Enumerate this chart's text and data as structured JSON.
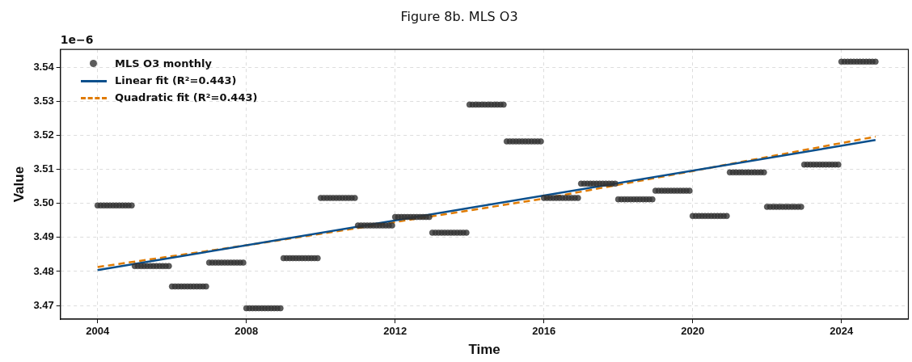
{
  "chart_data": {
    "type": "scatter",
    "title": "Figure 8b. MLS O3",
    "xlabel": "Time",
    "ylabel": "Value",
    "annotations": [
      "1e−6"
    ],
    "xlim": [
      2003,
      2025.8
    ],
    "xticks": [
      2004,
      2008,
      2012,
      2016,
      2020,
      2024
    ],
    "ylim": [
      3.466,
      3.5452
    ],
    "yticks": [
      3.47,
      3.48,
      3.49,
      {
        "value": 3.5,
        "label": "3.50"
      },
      3.51,
      3.52,
      3.53,
      3.54
    ],
    "grid": true,
    "legend": "top left",
    "series": [
      {
        "name": "MLS O3 monthly",
        "color": "#333333",
        "marker": "circle",
        "x": [
          2004,
          2004.083,
          2004.167,
          2004.25,
          2004.333,
          2004.417,
          2004.5,
          2004.583,
          2004.667,
          2004.75,
          2004.833,
          2004.917,
          2005,
          2005.083,
          2005.167,
          2005.25,
          2005.333,
          2005.417,
          2005.5,
          2005.583,
          2005.667,
          2005.75,
          2005.833,
          2005.917,
          2006,
          2006.083,
          2006.167,
          2006.25,
          2006.333,
          2006.417,
          2006.5,
          2006.583,
          2006.667,
          2006.75,
          2006.833,
          2006.917,
          2007,
          2007.083,
          2007.167,
          2007.25,
          2007.333,
          2007.417,
          2007.5,
          2007.583,
          2007.667,
          2007.75,
          2007.833,
          2007.917,
          2008,
          2008.083,
          2008.167,
          2008.25,
          2008.333,
          2008.417,
          2008.5,
          2008.583,
          2008.667,
          2008.75,
          2008.833,
          2008.917,
          2009,
          2009.083,
          2009.167,
          2009.25,
          2009.333,
          2009.417,
          2009.5,
          2009.583,
          2009.667,
          2009.75,
          2009.833,
          2009.917,
          2010,
          2010.083,
          2010.167,
          2010.25,
          2010.333,
          2010.417,
          2010.5,
          2010.583,
          2010.667,
          2010.75,
          2010.833,
          2010.917,
          2011,
          2011.083,
          2011.167,
          2011.25,
          2011.333,
          2011.417,
          2011.5,
          2011.583,
          2011.667,
          2011.75,
          2011.833,
          2011.917,
          2012,
          2012.083,
          2012.167,
          2012.25,
          2012.333,
          2012.417,
          2012.5,
          2012.583,
          2012.667,
          2012.75,
          2012.833,
          2012.917,
          2013,
          2013.083,
          2013.167,
          2013.25,
          2013.333,
          2013.417,
          2013.5,
          2013.583,
          2013.667,
          2013.75,
          2013.833,
          2013.917,
          2014,
          2014.083,
          2014.167,
          2014.25,
          2014.333,
          2014.417,
          2014.5,
          2014.583,
          2014.667,
          2014.75,
          2014.833,
          2014.917,
          2015,
          2015.083,
          2015.167,
          2015.25,
          2015.333,
          2015.417,
          2015.5,
          2015.583,
          2015.667,
          2015.75,
          2015.833,
          2015.917,
          2016,
          2016.083,
          2016.167,
          2016.25,
          2016.333,
          2016.417,
          2016.5,
          2016.583,
          2016.667,
          2016.75,
          2016.833,
          2016.917,
          2017,
          2017.083,
          2017.167,
          2017.25,
          2017.333,
          2017.417,
          2017.5,
          2017.583,
          2017.667,
          2017.75,
          2017.833,
          2017.917,
          2018,
          2018.083,
          2018.167,
          2018.25,
          2018.333,
          2018.417,
          2018.5,
          2018.583,
          2018.667,
          2018.75,
          2018.833,
          2018.917,
          2019,
          2019.083,
          2019.167,
          2019.25,
          2019.333,
          2019.417,
          2019.5,
          2019.583,
          2019.667,
          2019.75,
          2019.833,
          2019.917,
          2020,
          2020.083,
          2020.167,
          2020.25,
          2020.333,
          2020.417,
          2020.5,
          2020.583,
          2020.667,
          2020.75,
          2020.833,
          2020.917,
          2021,
          2021.083,
          2021.167,
          2021.25,
          2021.333,
          2021.417,
          2021.5,
          2021.583,
          2021.667,
          2021.75,
          2021.833,
          2021.917,
          2022,
          2022.083,
          2022.167,
          2022.25,
          2022.333,
          2022.417,
          2022.5,
          2022.583,
          2022.667,
          2022.75,
          2022.833,
          2022.917,
          2023,
          2023.083,
          2023.167,
          2023.25,
          2023.333,
          2023.417,
          2023.5,
          2023.583,
          2023.667,
          2023.75,
          2023.833,
          2023.917,
          2024,
          2024.083,
          2024.167,
          2024.25,
          2024.333,
          2024.417,
          2024.5,
          2024.583,
          2024.667,
          2024.75,
          2024.833,
          2024.917
        ],
        "values": [
          3.4994,
          3.4994,
          3.4994,
          3.4994,
          3.4994,
          3.4994,
          3.4994,
          3.4994,
          3.4994,
          3.4994,
          3.4994,
          3.4994,
          3.4816,
          3.4816,
          3.4816,
          3.4816,
          3.4816,
          3.4816,
          3.4816,
          3.4816,
          3.4816,
          3.4816,
          3.4816,
          3.4816,
          3.4756,
          3.4756,
          3.4756,
          3.4756,
          3.4756,
          3.4756,
          3.4756,
          3.4756,
          3.4756,
          3.4756,
          3.4756,
          3.4756,
          3.4826,
          3.4826,
          3.4826,
          3.4826,
          3.4826,
          3.4826,
          3.4826,
          3.4826,
          3.4826,
          3.4826,
          3.4826,
          3.4826,
          3.4692,
          3.4692,
          3.4692,
          3.4692,
          3.4692,
          3.4692,
          3.4692,
          3.4692,
          3.4692,
          3.4692,
          3.4692,
          3.4692,
          3.4839,
          3.4839,
          3.4839,
          3.4839,
          3.4839,
          3.4839,
          3.4839,
          3.4839,
          3.4839,
          3.4839,
          3.4839,
          3.4839,
          3.5016,
          3.5016,
          3.5016,
          3.5016,
          3.5016,
          3.5016,
          3.5016,
          3.5016,
          3.5016,
          3.5016,
          3.5016,
          3.5016,
          3.4935,
          3.4935,
          3.4935,
          3.4935,
          3.4935,
          3.4935,
          3.4935,
          3.4935,
          3.4935,
          3.4935,
          3.4935,
          3.4935,
          3.496,
          3.496,
          3.496,
          3.496,
          3.496,
          3.496,
          3.496,
          3.496,
          3.496,
          3.496,
          3.496,
          3.496,
          3.4914,
          3.4914,
          3.4914,
          3.4914,
          3.4914,
          3.4914,
          3.4914,
          3.4914,
          3.4914,
          3.4914,
          3.4914,
          3.4914,
          3.529,
          3.529,
          3.529,
          3.529,
          3.529,
          3.529,
          3.529,
          3.529,
          3.529,
          3.529,
          3.529,
          3.529,
          3.5182,
          3.5182,
          3.5182,
          3.5182,
          3.5182,
          3.5182,
          3.5182,
          3.5182,
          3.5182,
          3.5182,
          3.5182,
          3.5182,
          3.5016,
          3.5016,
          3.5016,
          3.5016,
          3.5016,
          3.5016,
          3.5016,
          3.5016,
          3.5016,
          3.5016,
          3.5016,
          3.5016,
          3.5058,
          3.5058,
          3.5058,
          3.5058,
          3.5058,
          3.5058,
          3.5058,
          3.5058,
          3.5058,
          3.5058,
          3.5058,
          3.5058,
          3.5012,
          3.5012,
          3.5012,
          3.5012,
          3.5012,
          3.5012,
          3.5012,
          3.5012,
          3.5012,
          3.5012,
          3.5012,
          3.5012,
          3.5037,
          3.5037,
          3.5037,
          3.5037,
          3.5037,
          3.5037,
          3.5037,
          3.5037,
          3.5037,
          3.5037,
          3.5037,
          3.5037,
          3.4963,
          3.4963,
          3.4963,
          3.4963,
          3.4963,
          3.4963,
          3.4963,
          3.4963,
          3.4963,
          3.4963,
          3.4963,
          3.4963,
          3.5091,
          3.5091,
          3.5091,
          3.5091,
          3.5091,
          3.5091,
          3.5091,
          3.5091,
          3.5091,
          3.5091,
          3.5091,
          3.5091,
          3.499,
          3.499,
          3.499,
          3.499,
          3.499,
          3.499,
          3.499,
          3.499,
          3.499,
          3.499,
          3.499,
          3.499,
          3.5114,
          3.5114,
          3.5114,
          3.5114,
          3.5114,
          3.5114,
          3.5114,
          3.5114,
          3.5114,
          3.5114,
          3.5114,
          3.5114,
          3.5416,
          3.5416,
          3.5416,
          3.5416,
          3.5416,
          3.5416,
          3.5416,
          3.5416,
          3.5416,
          3.5416,
          3.5416,
          3.5416
        ]
      },
      {
        "name": "Linear fit (R²=0.443)",
        "type": "line",
        "color": "#0a4f8c",
        "line_style": "solid",
        "x": [
          2004,
          2024.917
        ],
        "values": [
          3.4804,
          3.5186
        ]
      },
      {
        "name": "Quadratic fit (R²=0.443)",
        "type": "line",
        "color": "#e07b00",
        "line_style": "dashed",
        "x": [
          2004,
          2008,
          2012,
          2016,
          2020,
          2024.917
        ],
        "values": [
          3.4813,
          3.4877,
          3.4945,
          3.5014,
          3.5095,
          3.5196
        ]
      }
    ]
  }
}
